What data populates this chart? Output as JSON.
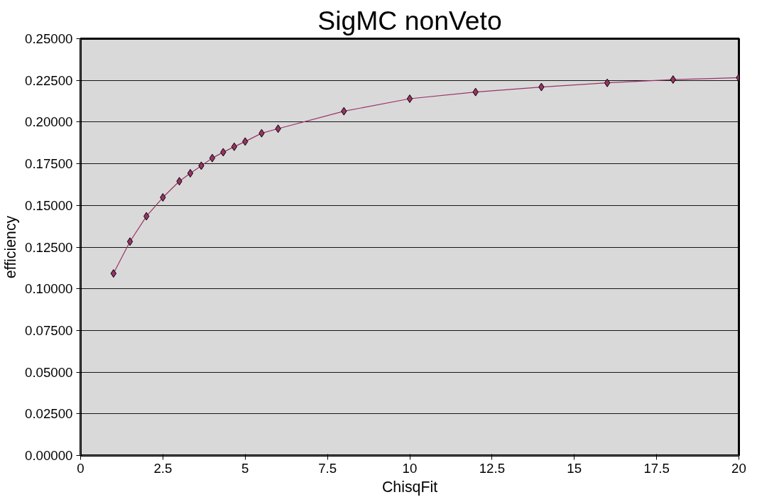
{
  "chart_data": {
    "type": "line",
    "title": "SigMC nonVeto",
    "xlabel": "ChisqFit",
    "ylabel": "efficiency",
    "x": [
      1,
      1.5,
      2,
      2.5,
      3,
      3.333,
      3.667,
      4,
      4.333,
      4.667,
      5,
      5.5,
      6,
      8,
      10,
      12,
      14,
      16,
      18,
      20
    ],
    "series": [
      {
        "color": "#993366",
        "values": [
          0.1092,
          0.1283,
          0.1435,
          0.1548,
          0.1645,
          0.1693,
          0.1738,
          0.1784,
          0.1819,
          0.1852,
          0.1883,
          0.1933,
          0.196,
          0.2065,
          0.214,
          0.218,
          0.221,
          0.2235,
          0.2255,
          0.2266
        ]
      }
    ],
    "xlim": [
      0,
      20
    ],
    "xticks": [
      0,
      2.5,
      5,
      7.5,
      10,
      12.5,
      15,
      17.5,
      20
    ],
    "ylim": [
      0,
      0.25
    ],
    "yticks": [
      {
        "value": 0,
        "label": "0.00000"
      },
      {
        "value": 0.025,
        "label": "0.02500"
      },
      {
        "value": 0.05,
        "label": "0.05000"
      },
      {
        "value": 0.075,
        "label": "0.07500"
      },
      {
        "value": 0.1,
        "label": "0.10000"
      },
      {
        "value": 0.125,
        "label": "0.12500"
      },
      {
        "value": 0.15,
        "label": "0.15000"
      },
      {
        "value": 0.175,
        "label": "0.17500"
      },
      {
        "value": 0.2,
        "label": "0.20000"
      },
      {
        "value": 0.225,
        "label": "0.22500"
      },
      {
        "value": 0.25,
        "label": "0.25000"
      }
    ],
    "grid": "y",
    "marker": "diamond",
    "line_style": "solid"
  }
}
